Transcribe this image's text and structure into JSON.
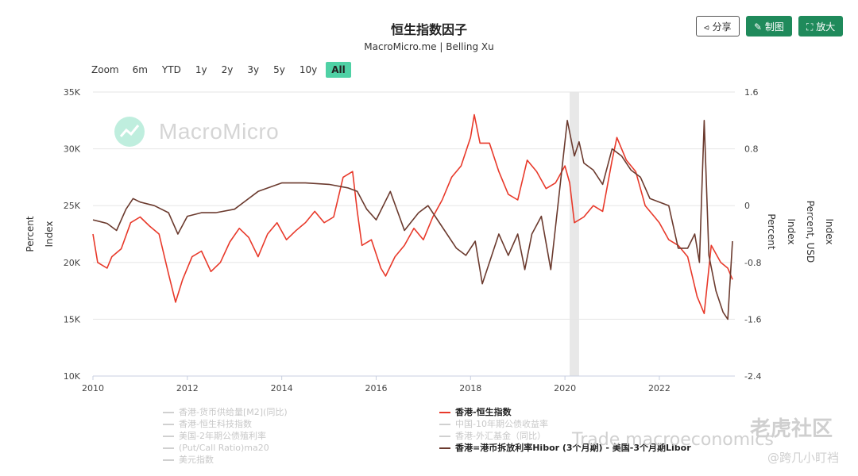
{
  "header": {
    "title": "恒生指数因子",
    "subtitle": "MacroMicro.me | Belling Xu",
    "share_label": "分享",
    "draw_label": "制图",
    "zoom_label": "放大"
  },
  "zoom": {
    "label": "Zoom",
    "options": [
      "6m",
      "YTD",
      "1y",
      "2y",
      "3y",
      "5y",
      "10y",
      "All"
    ],
    "active": "All"
  },
  "watermark": {
    "logo_text": "MacroMicro",
    "trade": "Trade macroeconomics",
    "brand": "老虎社区",
    "user": "@跨几小盯裆"
  },
  "colors": {
    "hsi": "#e8392a",
    "spread": "#6b3a2e",
    "grid": "#e6e6e6",
    "band": "#e8e8e8"
  },
  "chart_data": {
    "type": "line",
    "x_axis": {
      "ticks": [
        "2010",
        "2012",
        "2014",
        "2016",
        "2018",
        "2020",
        "2022"
      ],
      "range": [
        2010,
        2023.6
      ]
    },
    "y_left": {
      "titles": [
        "Percent",
        "Index"
      ],
      "ticks": [
        "10K",
        "15K",
        "20K",
        "25K",
        "30K",
        "35K"
      ],
      "range": [
        10000,
        35000
      ]
    },
    "y_right": {
      "titles": [
        "Percent",
        "Index",
        "Percent, USD",
        "Index"
      ],
      "ticks": [
        "-2.4",
        "-1.6",
        "-0.8",
        "0",
        "0.8",
        "1.6"
      ],
      "range": [
        -2.4,
        1.6
      ]
    },
    "shaded_band": [
      2020.1,
      2020.3
    ],
    "series": [
      {
        "name": "香港-恒生指数",
        "axis": "left",
        "color": "#e8392a",
        "x": [
          2010.0,
          2010.1,
          2010.3,
          2010.4,
          2010.6,
          2010.8,
          2011.0,
          2011.2,
          2011.4,
          2011.6,
          2011.75,
          2011.9,
          2012.1,
          2012.3,
          2012.5,
          2012.7,
          2012.9,
          2013.1,
          2013.3,
          2013.5,
          2013.7,
          2013.9,
          2014.1,
          2014.3,
          2014.5,
          2014.7,
          2014.9,
          2015.1,
          2015.3,
          2015.5,
          2015.6,
          2015.7,
          2015.9,
          2016.1,
          2016.2,
          2016.4,
          2016.6,
          2016.8,
          2017.0,
          2017.2,
          2017.4,
          2017.6,
          2017.8,
          2018.0,
          2018.08,
          2018.2,
          2018.4,
          2018.6,
          2018.8,
          2019.0,
          2019.2,
          2019.4,
          2019.6,
          2019.8,
          2020.0,
          2020.1,
          2020.2,
          2020.4,
          2020.6,
          2020.8,
          2021.0,
          2021.1,
          2021.3,
          2021.5,
          2021.7,
          2021.9,
          2022.0,
          2022.2,
          2022.4,
          2022.6,
          2022.8,
          2022.95,
          2023.1,
          2023.3,
          2023.45,
          2023.55
        ],
        "values": [
          22500,
          20000,
          19500,
          20500,
          21200,
          23500,
          24000,
          23200,
          22500,
          19000,
          16500,
          18500,
          20500,
          21000,
          19200,
          20000,
          21800,
          23000,
          22200,
          20500,
          22500,
          23500,
          22000,
          22800,
          23500,
          24500,
          23500,
          24000,
          27500,
          28000,
          24500,
          21500,
          22000,
          19500,
          18800,
          20500,
          21500,
          23000,
          22000,
          24000,
          25500,
          27500,
          28500,
          31000,
          33000,
          30500,
          30500,
          28000,
          26000,
          25500,
          29000,
          28000,
          26500,
          27000,
          28500,
          27000,
          23500,
          24000,
          25000,
          24500,
          29000,
          31000,
          29000,
          28000,
          25000,
          24000,
          23500,
          22000,
          21500,
          20500,
          17000,
          15500,
          21500,
          20000,
          19500,
          18500
        ]
      },
      {
        "name": "香港=港币拆放利率Hibor (3个月期) - 美国-3个月期Libor",
        "axis": "right",
        "color": "#6b3a2e",
        "x": [
          2010.0,
          2010.3,
          2010.5,
          2010.7,
          2010.85,
          2011.0,
          2011.3,
          2011.6,
          2011.8,
          2012.0,
          2012.3,
          2012.6,
          2013.0,
          2013.5,
          2014.0,
          2014.5,
          2015.0,
          2015.4,
          2015.6,
          2015.8,
          2016.0,
          2016.3,
          2016.6,
          2016.9,
          2017.1,
          2017.4,
          2017.7,
          2017.9,
          2018.1,
          2018.25,
          2018.4,
          2018.6,
          2018.8,
          2019.0,
          2019.15,
          2019.3,
          2019.5,
          2019.7,
          2019.9,
          2020.05,
          2020.2,
          2020.3,
          2020.4,
          2020.6,
          2020.8,
          2021.0,
          2021.2,
          2021.4,
          2021.6,
          2021.8,
          2022.0,
          2022.2,
          2022.4,
          2022.6,
          2022.75,
          2022.85,
          2022.95,
          2023.05,
          2023.2,
          2023.35,
          2023.45,
          2023.55
        ],
        "values": [
          -0.2,
          -0.25,
          -0.35,
          -0.05,
          0.1,
          0.05,
          0.0,
          -0.1,
          -0.4,
          -0.15,
          -0.1,
          -0.1,
          -0.05,
          0.2,
          0.32,
          0.32,
          0.3,
          0.25,
          0.2,
          -0.05,
          -0.2,
          0.2,
          -0.35,
          -0.1,
          0.0,
          -0.3,
          -0.6,
          -0.7,
          -0.5,
          -1.1,
          -0.8,
          -0.4,
          -0.7,
          -0.4,
          -0.9,
          -0.4,
          -0.15,
          -0.9,
          0.3,
          1.2,
          0.7,
          0.9,
          0.6,
          0.5,
          0.3,
          0.8,
          0.7,
          0.5,
          0.4,
          0.1,
          0.05,
          0.0,
          -0.6,
          -0.6,
          -0.4,
          -0.8,
          1.2,
          -0.7,
          -1.2,
          -1.5,
          -1.6,
          -0.5
        ]
      }
    ],
    "legend": {
      "placement": "bottom",
      "left_column": [
        {
          "label": "香港-货币供给量[M2](同比)",
          "visible": false
        },
        {
          "label": "香港-恒生科技指数",
          "visible": false
        },
        {
          "label": "美国-2年期公债殖利率",
          "visible": false
        },
        {
          "label": "(Put/Call Ratio)ma20",
          "visible": false
        },
        {
          "label": "美元指数",
          "visible": false
        }
      ],
      "right_column": [
        {
          "label": "香港-恒生指数",
          "visible": true,
          "color": "#e8392a"
        },
        {
          "label": "中国-10年期公债收益率",
          "visible": false
        },
        {
          "label": "香港-外汇基金（同比）",
          "visible": false
        },
        {
          "label": "香港=港币拆放利率Hibor (3个月期) - 美国-3个月期Libor",
          "visible": true,
          "color": "#6b3a2e"
        }
      ]
    }
  }
}
